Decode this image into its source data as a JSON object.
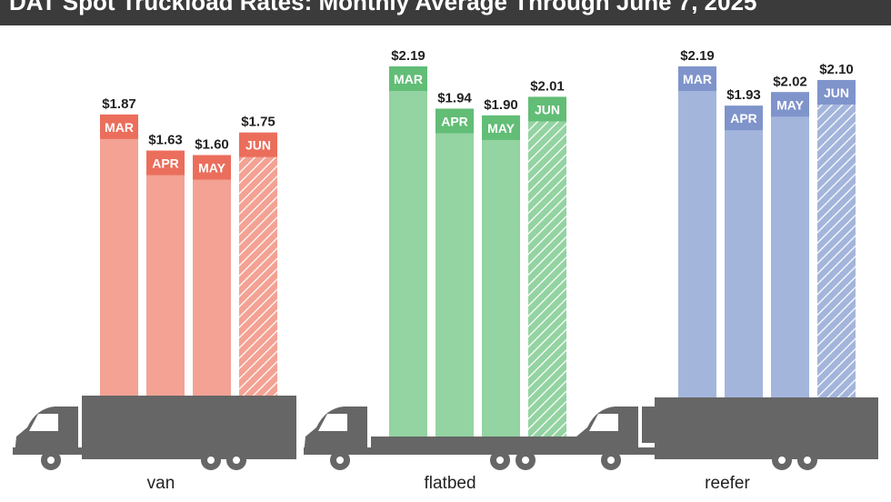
{
  "header": {
    "title": "DAT Spot Truckload Rates: Monthly Average Through June 7, 2025"
  },
  "chart_data": [
    {
      "type": "bar",
      "trailer": "van",
      "categories": [
        "MAR",
        "APR",
        "MAY",
        "JUN"
      ],
      "values": [
        1.87,
        1.63,
        1.6,
        1.75
      ],
      "value_labels": [
        "$1.87",
        "$1.63",
        "$1.60",
        "$1.75"
      ],
      "partial_month": "JUN",
      "colors": {
        "bar": "#f3a294",
        "tab": "#eb6e5c"
      }
    },
    {
      "type": "bar",
      "trailer": "flatbed",
      "categories": [
        "MAR",
        "APR",
        "MAY",
        "JUN"
      ],
      "values": [
        2.19,
        1.94,
        1.9,
        2.01
      ],
      "value_labels": [
        "$2.19",
        "$1.94",
        "$1.90",
        "$2.01"
      ],
      "partial_month": "JUN",
      "colors": {
        "bar": "#94d3a2",
        "tab": "#62bd76"
      }
    },
    {
      "type": "bar",
      "trailer": "reefer",
      "categories": [
        "MAR",
        "APR",
        "MAY",
        "JUN"
      ],
      "values": [
        2.19,
        1.93,
        2.02,
        2.1
      ],
      "value_labels": [
        "$2.19",
        "$1.93",
        "$2.02",
        "$2.10"
      ],
      "partial_month": "JUN",
      "colors": {
        "bar": "#a4b5dc",
        "tab": "#7f94cb"
      }
    }
  ]
}
